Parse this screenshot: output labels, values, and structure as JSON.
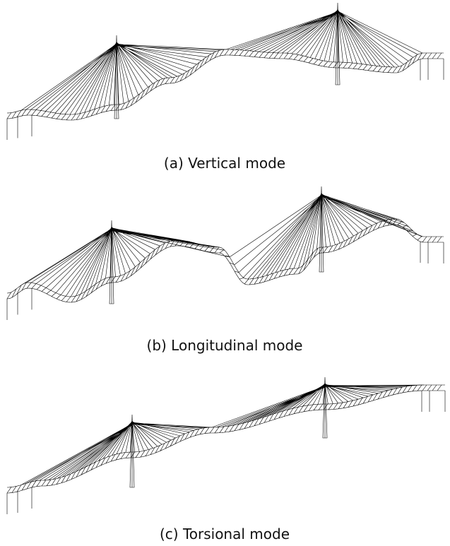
{
  "captions": [
    "(a) Vertical mode",
    "(b) Longitudinal mode",
    "(c) Torsional mode"
  ]
}
